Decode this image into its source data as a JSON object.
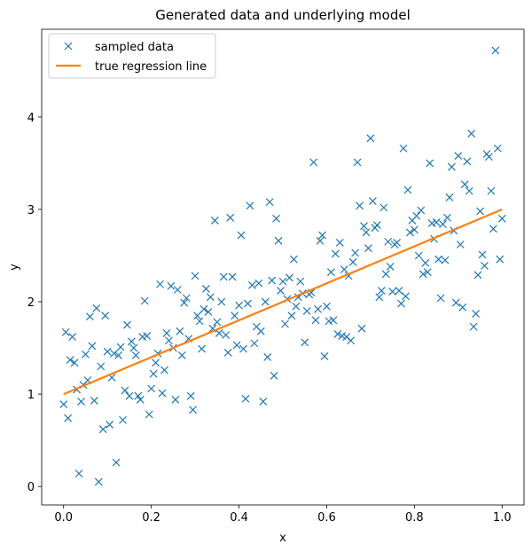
{
  "chart_data": {
    "type": "scatter",
    "title": "Generated data and underlying model",
    "xlabel": "x",
    "ylabel": "y",
    "xlim": [
      -0.05,
      1.05
    ],
    "ylim": [
      -0.2,
      4.95
    ],
    "xticks": [
      0.0,
      0.2,
      0.4,
      0.6,
      0.8,
      1.0
    ],
    "xtick_labels": [
      "0.0",
      "0.2",
      "0.4",
      "0.6",
      "0.8",
      "1.0"
    ],
    "yticks": [
      0,
      1,
      2,
      3,
      4
    ],
    "ytick_labels": [
      "0",
      "1",
      "2",
      "3",
      "4"
    ],
    "grid": false,
    "legend_position": "top-left",
    "series": [
      {
        "name": "sampled data",
        "kind": "markers",
        "marker": "x",
        "color": "#1f77b4",
        "points": [
          [
            0.0,
            0.89
          ],
          [
            0.005,
            1.67
          ],
          [
            0.01,
            0.74
          ],
          [
            0.015,
            1.37
          ],
          [
            0.02,
            1.62
          ],
          [
            0.025,
            1.34
          ],
          [
            0.03,
            1.05
          ],
          [
            0.035,
            0.14
          ],
          [
            0.04,
            0.92
          ],
          [
            0.045,
            1.1
          ],
          [
            0.05,
            1.43
          ],
          [
            0.055,
            1.15
          ],
          [
            0.06,
            1.84
          ],
          [
            0.065,
            1.52
          ],
          [
            0.07,
            0.93
          ],
          [
            0.075,
            1.93
          ],
          [
            0.08,
            0.05
          ],
          [
            0.085,
            1.3
          ],
          [
            0.09,
            0.62
          ],
          [
            0.095,
            1.85
          ],
          [
            0.1,
            1.46
          ],
          [
            0.105,
            0.67
          ],
          [
            0.11,
            1.18
          ],
          [
            0.115,
            1.44
          ],
          [
            0.12,
            0.26
          ],
          [
            0.125,
            1.42
          ],
          [
            0.13,
            1.51
          ],
          [
            0.135,
            0.72
          ],
          [
            0.14,
            1.04
          ],
          [
            0.145,
            1.75
          ],
          [
            0.15,
            0.98
          ],
          [
            0.155,
            1.57
          ],
          [
            0.16,
            1.5
          ],
          [
            0.165,
            1.42
          ],
          [
            0.17,
            0.98
          ],
          [
            0.175,
            0.94
          ],
          [
            0.18,
            1.62
          ],
          [
            0.185,
            2.01
          ],
          [
            0.19,
            1.63
          ],
          [
            0.195,
            0.78
          ],
          [
            0.2,
            1.06
          ],
          [
            0.205,
            1.22
          ],
          [
            0.21,
            1.34
          ],
          [
            0.215,
            1.44
          ],
          [
            0.22,
            2.19
          ],
          [
            0.225,
            1.01
          ],
          [
            0.23,
            1.26
          ],
          [
            0.235,
            1.66
          ],
          [
            0.24,
            1.58
          ],
          [
            0.245,
            2.17
          ],
          [
            0.25,
            1.5
          ],
          [
            0.255,
            0.94
          ],
          [
            0.26,
            2.13
          ],
          [
            0.265,
            1.68
          ],
          [
            0.27,
            1.42
          ],
          [
            0.275,
            1.99
          ],
          [
            0.28,
            2.04
          ],
          [
            0.285,
            1.6
          ],
          [
            0.29,
            0.98
          ],
          [
            0.295,
            0.83
          ],
          [
            0.3,
            2.28
          ],
          [
            0.305,
            1.85
          ],
          [
            0.31,
            1.79
          ],
          [
            0.315,
            1.49
          ],
          [
            0.32,
            1.92
          ],
          [
            0.325,
            2.14
          ],
          [
            0.33,
            1.89
          ],
          [
            0.335,
            2.05
          ],
          [
            0.34,
            1.71
          ],
          [
            0.345,
            2.88
          ],
          [
            0.35,
            1.78
          ],
          [
            0.355,
            1.66
          ],
          [
            0.36,
            2.0
          ],
          [
            0.365,
            2.27
          ],
          [
            0.37,
            1.64
          ],
          [
            0.375,
            1.45
          ],
          [
            0.38,
            2.91
          ],
          [
            0.385,
            2.27
          ],
          [
            0.39,
            1.85
          ],
          [
            0.395,
            1.53
          ],
          [
            0.4,
            1.96
          ],
          [
            0.405,
            2.72
          ],
          [
            0.41,
            1.49
          ],
          [
            0.415,
            0.95
          ],
          [
            0.42,
            1.98
          ],
          [
            0.425,
            3.04
          ],
          [
            0.43,
            2.18
          ],
          [
            0.435,
            1.55
          ],
          [
            0.44,
            1.73
          ],
          [
            0.445,
            2.2
          ],
          [
            0.45,
            1.68
          ],
          [
            0.455,
            0.92
          ],
          [
            0.46,
            2.0
          ],
          [
            0.465,
            1.4
          ],
          [
            0.47,
            3.08
          ],
          [
            0.475,
            2.23
          ],
          [
            0.48,
            1.2
          ],
          [
            0.485,
            2.9
          ],
          [
            0.49,
            2.66
          ],
          [
            0.495,
            2.12
          ],
          [
            0.5,
            2.22
          ],
          [
            0.505,
            1.76
          ],
          [
            0.51,
            2.03
          ],
          [
            0.515,
            2.26
          ],
          [
            0.52,
            1.85
          ],
          [
            0.525,
            2.46
          ],
          [
            0.53,
            1.95
          ],
          [
            0.535,
            2.05
          ],
          [
            0.54,
            2.22
          ],
          [
            0.545,
            2.09
          ],
          [
            0.55,
            1.56
          ],
          [
            0.555,
            1.9
          ],
          [
            0.56,
            2.08
          ],
          [
            0.565,
            2.1
          ],
          [
            0.57,
            3.51
          ],
          [
            0.575,
            1.8
          ],
          [
            0.58,
            1.92
          ],
          [
            0.585,
            2.66
          ],
          [
            0.59,
            2.72
          ],
          [
            0.595,
            1.41
          ],
          [
            0.6,
            1.95
          ],
          [
            0.605,
            1.79
          ],
          [
            0.61,
            2.32
          ],
          [
            0.615,
            1.8
          ],
          [
            0.62,
            2.52
          ],
          [
            0.625,
            1.65
          ],
          [
            0.63,
            2.64
          ],
          [
            0.635,
            1.63
          ],
          [
            0.64,
            2.35
          ],
          [
            0.645,
            1.62
          ],
          [
            0.65,
            2.28
          ],
          [
            0.655,
            1.58
          ],
          [
            0.66,
            2.43
          ],
          [
            0.665,
            2.53
          ],
          [
            0.67,
            3.51
          ],
          [
            0.675,
            3.04
          ],
          [
            0.68,
            1.71
          ],
          [
            0.685,
            2.82
          ],
          [
            0.69,
            2.75
          ],
          [
            0.695,
            2.58
          ],
          [
            0.7,
            3.77
          ],
          [
            0.705,
            3.09
          ],
          [
            0.71,
            2.8
          ],
          [
            0.715,
            2.83
          ],
          [
            0.72,
            2.05
          ],
          [
            0.725,
            2.12
          ],
          [
            0.73,
            3.02
          ],
          [
            0.735,
            2.3
          ],
          [
            0.74,
            2.65
          ],
          [
            0.745,
            2.38
          ],
          [
            0.75,
            2.11
          ],
          [
            0.755,
            2.62
          ],
          [
            0.76,
            2.64
          ],
          [
            0.765,
            2.12
          ],
          [
            0.77,
            1.98
          ],
          [
            0.775,
            3.66
          ],
          [
            0.78,
            2.06
          ],
          [
            0.785,
            3.21
          ],
          [
            0.79,
            2.75
          ],
          [
            0.795,
            2.88
          ],
          [
            0.8,
            2.78
          ],
          [
            0.805,
            2.93
          ],
          [
            0.81,
            2.5
          ],
          [
            0.815,
            2.99
          ],
          [
            0.82,
            2.3
          ],
          [
            0.825,
            2.42
          ],
          [
            0.83,
            2.32
          ],
          [
            0.835,
            3.5
          ],
          [
            0.84,
            2.85
          ],
          [
            0.845,
            2.68
          ],
          [
            0.85,
            2.86
          ],
          [
            0.855,
            2.46
          ],
          [
            0.86,
            2.04
          ],
          [
            0.865,
            2.84
          ],
          [
            0.87,
            2.45
          ],
          [
            0.875,
            2.91
          ],
          [
            0.88,
            3.13
          ],
          [
            0.885,
            3.46
          ],
          [
            0.89,
            2.77
          ],
          [
            0.895,
            1.99
          ],
          [
            0.9,
            3.58
          ],
          [
            0.905,
            2.62
          ],
          [
            0.91,
            1.94
          ],
          [
            0.915,
            3.27
          ],
          [
            0.92,
            3.52
          ],
          [
            0.925,
            3.2
          ],
          [
            0.93,
            3.82
          ],
          [
            0.935,
            1.73
          ],
          [
            0.94,
            1.87
          ],
          [
            0.945,
            2.29
          ],
          [
            0.95,
            2.98
          ],
          [
            0.955,
            2.51
          ],
          [
            0.96,
            2.39
          ],
          [
            0.965,
            3.6
          ],
          [
            0.97,
            3.57
          ],
          [
            0.975,
            3.2
          ],
          [
            0.98,
            2.79
          ],
          [
            0.985,
            4.72
          ],
          [
            0.99,
            3.66
          ],
          [
            0.995,
            2.46
          ],
          [
            1.0,
            2.9
          ]
        ]
      },
      {
        "name": "true regression line",
        "kind": "line",
        "color": "#ff7f0e",
        "points": [
          [
            0.0,
            1.0
          ],
          [
            1.0,
            3.0
          ]
        ]
      }
    ]
  }
}
